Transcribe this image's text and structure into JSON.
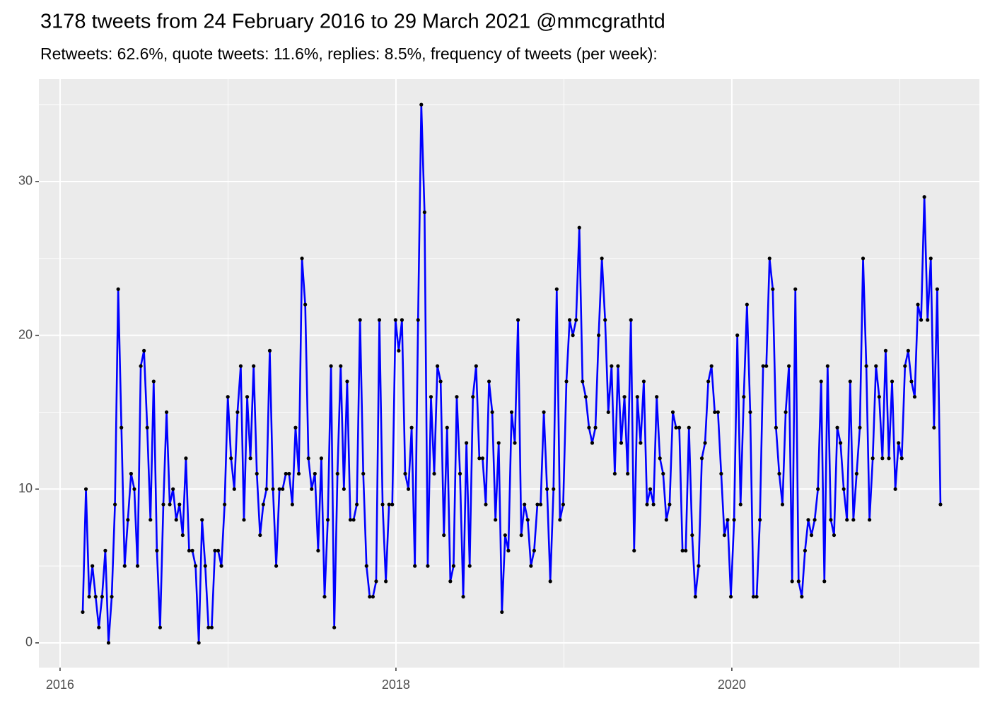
{
  "chart_data": {
    "type": "line",
    "title": "3178 tweets from 24 February 2016 to 29 March 2021 @mmcgrathtd",
    "subtitle": "Retweets: 62.6%, quote tweets: 11.6%, replies: 8.5%, frequency of tweets (per week):",
    "color": "#0000ff",
    "point_color": "#000000",
    "grid": true,
    "xlim": [
      2015.874,
      2021.474
    ],
    "ylim": [
      -1.61,
      36.66
    ],
    "xticks": [
      2016,
      2018,
      2020
    ],
    "yticks": [
      0,
      10,
      20,
      30
    ],
    "x_minor_ticks": [
      2017,
      2019,
      2021
    ],
    "y_minor_ticks": [
      5,
      15,
      25,
      35
    ],
    "x": [
      2016.135,
      2016.1542,
      2016.1734,
      2016.1926,
      2016.2118,
      2016.231,
      2016.2502,
      2016.2694,
      2016.2886,
      2016.3078,
      2016.327,
      2016.3462,
      2016.3654,
      2016.3846,
      2016.4038,
      2016.423,
      2016.4422,
      2016.4614,
      2016.4806,
      2016.4998,
      2016.519,
      2016.5382,
      2016.5574,
      2016.5766,
      2016.5958,
      2016.615,
      2016.6342,
      2016.6534,
      2016.6726,
      2016.6918,
      2016.711,
      2016.7302,
      2016.7494,
      2016.7686,
      2016.7878,
      2016.807,
      2016.8262,
      2016.8454,
      2016.8646,
      2016.8838,
      2016.903,
      2016.9222,
      2016.9414,
      2016.9606,
      2016.9798,
      2016.999,
      2017.0182,
      2017.0374,
      2017.0566,
      2017.0758,
      2017.095,
      2017.1142,
      2017.1334,
      2017.1526,
      2017.1718,
      2017.191,
      2017.2102,
      2017.2294,
      2017.2486,
      2017.2678,
      2017.287,
      2017.3062,
      2017.3254,
      2017.3446,
      2017.3638,
      2017.383,
      2017.4022,
      2017.4214,
      2017.4406,
      2017.4598,
      2017.479,
      2017.4982,
      2017.5174,
      2017.5366,
      2017.5558,
      2017.575,
      2017.5942,
      2017.6134,
      2017.6326,
      2017.6518,
      2017.671,
      2017.6902,
      2017.7094,
      2017.7286,
      2017.7478,
      2017.767,
      2017.7862,
      2017.8054,
      2017.8246,
      2017.8438,
      2017.863,
      2017.8822,
      2017.9014,
      2017.9206,
      2017.9398,
      2017.959,
      2017.9782,
      2017.9974,
      2018.0166,
      2018.0358,
      2018.055,
      2018.0742,
      2018.0934,
      2018.1126,
      2018.1318,
      2018.151,
      2018.1702,
      2018.1894,
      2018.2086,
      2018.2278,
      2018.247,
      2018.2662,
      2018.2854,
      2018.3046,
      2018.3238,
      2018.343,
      2018.3622,
      2018.3814,
      2018.4006,
      2018.4198,
      2018.439,
      2018.4582,
      2018.4774,
      2018.4966,
      2018.5158,
      2018.535,
      2018.5542,
      2018.5734,
      2018.5926,
      2018.6118,
      2018.631,
      2018.6502,
      2018.6694,
      2018.6886,
      2018.7078,
      2018.727,
      2018.7462,
      2018.7654,
      2018.7846,
      2018.8038,
      2018.823,
      2018.8422,
      2018.8614,
      2018.8806,
      2018.8998,
      2018.919,
      2018.9382,
      2018.9574,
      2018.9766,
      2018.9958,
      2019.015,
      2019.0342,
      2019.0534,
      2019.0726,
      2019.0918,
      2019.111,
      2019.1302,
      2019.1494,
      2019.1686,
      2019.1878,
      2019.207,
      2019.2262,
      2019.2454,
      2019.2646,
      2019.2838,
      2019.303,
      2019.3222,
      2019.3414,
      2019.3606,
      2019.3798,
      2019.399,
      2019.4182,
      2019.4374,
      2019.4566,
      2019.4758,
      2019.495,
      2019.5142,
      2019.5334,
      2019.5526,
      2019.5718,
      2019.591,
      2019.6102,
      2019.6294,
      2019.6486,
      2019.6678,
      2019.687,
      2019.7062,
      2019.7254,
      2019.7446,
      2019.7638,
      2019.783,
      2019.8022,
      2019.8214,
      2019.8406,
      2019.8598,
      2019.879,
      2019.8982,
      2019.9174,
      2019.9366,
      2019.9558,
      2019.975,
      2019.9942,
      2020.0134,
      2020.0326,
      2020.0518,
      2020.071,
      2020.0902,
      2020.1094,
      2020.1286,
      2020.1478,
      2020.167,
      2020.1862,
      2020.2054,
      2020.2246,
      2020.2438,
      2020.263,
      2020.2822,
      2020.3014,
      2020.3206,
      2020.3398,
      2020.359,
      2020.3782,
      2020.3974,
      2020.4166,
      2020.4358,
      2020.455,
      2020.4742,
      2020.4934,
      2020.5126,
      2020.5318,
      2020.551,
      2020.5702,
      2020.5894,
      2020.6086,
      2020.6278,
      2020.647,
      2020.6662,
      2020.6854,
      2020.7046,
      2020.7238,
      2020.743,
      2020.7622,
      2020.7814,
      2020.8006,
      2020.8198,
      2020.839,
      2020.8582,
      2020.8774,
      2020.8966,
      2020.9158,
      2020.935,
      2020.9542,
      2020.9734,
      2020.9926,
      2021.0118,
      2021.031,
      2021.0502,
      2021.0694,
      2021.0886,
      2021.1078,
      2021.127,
      2021.1462,
      2021.1654,
      2021.1846,
      2021.2038,
      2021.223,
      2021.2422
    ],
    "values": [
      2,
      10,
      3,
      5,
      3,
      1,
      3,
      6,
      0,
      3,
      9,
      23,
      14,
      5,
      8,
      11,
      10,
      5,
      18,
      19,
      14,
      8,
      17,
      6,
      1,
      9,
      15,
      9,
      10,
      8,
      9,
      7,
      12,
      6,
      6,
      5,
      0,
      8,
      5,
      1,
      1,
      6,
      6,
      5,
      9,
      16,
      12,
      10,
      15,
      18,
      8,
      16,
      12,
      18,
      11,
      7,
      9,
      10,
      19,
      10,
      5,
      10,
      10,
      11,
      11,
      9,
      14,
      11,
      25,
      22,
      12,
      10,
      11,
      6,
      12,
      3,
      8,
      18,
      1,
      11,
      18,
      10,
      17,
      8,
      8,
      9,
      21,
      11,
      5,
      3,
      3,
      4,
      21,
      9,
      4,
      9,
      9,
      21,
      19,
      21,
      11,
      10,
      14,
      5,
      21,
      35,
      28,
      5,
      16,
      11,
      18,
      17,
      7,
      14,
      4,
      5,
      16,
      11,
      3,
      13,
      5,
      16,
      18,
      12,
      12,
      9,
      17,
      15,
      8,
      13,
      2,
      7,
      6,
      15,
      13,
      21,
      7,
      9,
      8,
      5,
      6,
      9,
      9,
      15,
      10,
      4,
      10,
      23,
      8,
      9,
      17,
      21,
      20,
      21,
      27,
      17,
      16,
      14,
      13,
      14,
      20,
      25,
      21,
      15,
      18,
      11,
      18,
      13,
      16,
      11,
      21,
      6,
      16,
      13,
      17,
      9,
      10,
      9,
      16,
      12,
      11,
      8,
      9,
      15,
      14,
      14,
      6,
      6,
      14,
      7,
      3,
      5,
      12,
      13,
      17,
      18,
      15,
      15,
      11,
      7,
      8,
      3,
      8,
      20,
      9,
      16,
      22,
      15,
      3,
      3,
      8,
      18,
      18,
      25,
      23,
      14,
      11,
      9,
      15,
      18,
      4,
      23,
      4,
      3,
      6,
      8,
      7,
      8,
      10,
      17,
      4,
      18,
      8,
      7,
      14,
      13,
      10,
      8,
      17,
      8,
      11,
      14,
      25,
      18,
      8,
      12,
      18,
      16,
      12,
      19,
      12,
      17,
      10,
      13,
      12,
      18,
      19,
      17,
      16,
      22,
      21,
      29,
      21,
      25,
      14,
      23,
      9
    ]
  }
}
